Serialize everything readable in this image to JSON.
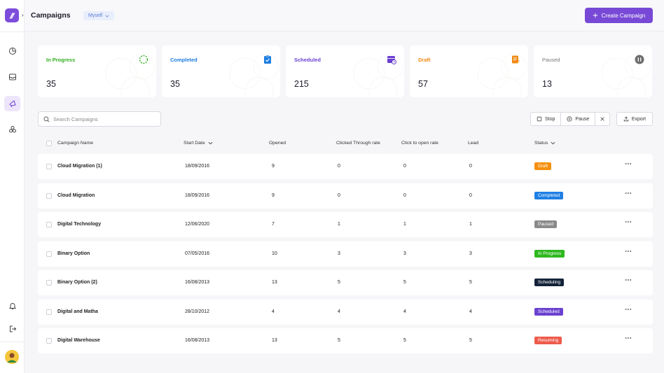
{
  "header": {
    "title": "Campaigns",
    "owner_filter": "Myself",
    "create_label": "Create Campaign"
  },
  "stats": [
    {
      "label": "In Progress",
      "value": "35",
      "color": "#2fae1e",
      "icon": "loading-circle-icon"
    },
    {
      "label": "Completed",
      "value": "35",
      "color": "#1d7de0",
      "icon": "clipboard-check-icon"
    },
    {
      "label": "Scheduled",
      "value": "215",
      "color": "#6a3fd1",
      "icon": "calendar-clock-icon"
    },
    {
      "label": "Draft",
      "value": "57",
      "color": "#f08a14",
      "icon": "document-edit-icon"
    },
    {
      "label": "Paused",
      "value": "13",
      "color": "#777777",
      "icon": "pause-circle-icon"
    }
  ],
  "toolbar": {
    "search_placeholder": "Search Campaigns",
    "stop_label": "Stop",
    "pause_label": "Pause",
    "export_label": "Export"
  },
  "table": {
    "columns": {
      "name": "Campaign Name",
      "start_date": "Start Date",
      "opened": "Opened",
      "ctr": "Clicked Through rate",
      "ctor": "Click to open rate",
      "lead": "Lead",
      "status": "Status"
    },
    "rows": [
      {
        "name": "Cloud Migration (1)",
        "start_date": "18/09/2016",
        "opened": "9",
        "ctr": "0",
        "ctor": "0",
        "lead": "0",
        "status": "Draft",
        "status_color": "#f5900e"
      },
      {
        "name": "Cloud Migration",
        "start_date": "18/09/2016",
        "opened": "9",
        "ctr": "0",
        "ctor": "0",
        "lead": "0",
        "status": "Completed",
        "status_color": "#1f7fe5"
      },
      {
        "name": "Digital Technology",
        "start_date": "12/06/2020",
        "opened": "7",
        "ctr": "1",
        "ctor": "1",
        "lead": "1",
        "status": "Paused",
        "status_color": "#8a8a8a"
      },
      {
        "name": "Binary Option",
        "start_date": "07/05/2016",
        "opened": "10",
        "ctr": "3",
        "ctor": "3",
        "lead": "3",
        "status": "In Progress",
        "status_color": "#2eb81f"
      },
      {
        "name": "Binary Option (2)",
        "start_date": "16/08/2013",
        "opened": "13",
        "ctr": "5",
        "ctor": "5",
        "lead": "5",
        "status": "Scheduling",
        "status_color": "#14233a"
      },
      {
        "name": "Digital and Matha",
        "start_date": "28/10/2012",
        "opened": "4",
        "ctr": "4",
        "ctor": "4",
        "lead": "4",
        "status": "Scheduled",
        "status_color": "#6a42d0"
      },
      {
        "name": "Digital Warehouse",
        "start_date": "16/08/2013",
        "opened": "13",
        "ctr": "5",
        "ctor": "5",
        "lead": "5",
        "status": "Resuming",
        "status_color": "#ee5a4b"
      }
    ]
  },
  "colors": {
    "brand": "#7749d6",
    "background": "#f6f6f9"
  }
}
